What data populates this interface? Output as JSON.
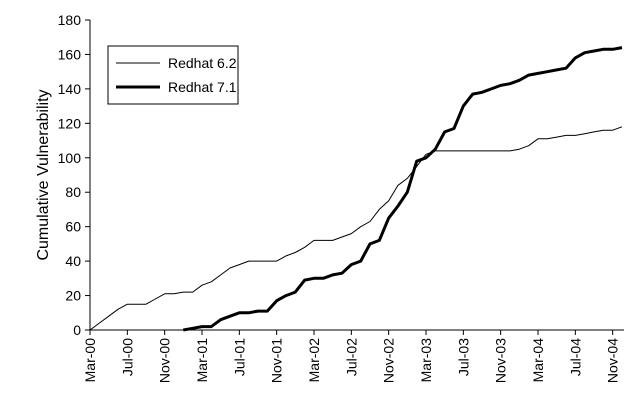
{
  "chart_data": {
    "type": "line",
    "y_label": "Cumulative Vulnerability",
    "categories": [
      "Mar-00",
      null,
      null,
      null,
      "Jul-00",
      null,
      null,
      null,
      "Nov-00",
      null,
      null,
      null,
      "Mar-01",
      null,
      null,
      null,
      "Jul-01",
      null,
      null,
      null,
      "Nov-01",
      null,
      null,
      null,
      "Mar-02",
      null,
      null,
      null,
      "Jul-02",
      null,
      null,
      null,
      "Nov-02",
      null,
      null,
      null,
      "Mar-03",
      null,
      null,
      null,
      "Jul-03",
      null,
      null,
      null,
      "Nov-03",
      null,
      null,
      null,
      "Mar-04",
      null,
      null,
      null,
      "Jul-04",
      null,
      null,
      null,
      "Nov-04",
      null
    ],
    "series": [
      {
        "name": "Redhat 6.2",
        "color": "#000000",
        "width": 1,
        "values": [
          0,
          4,
          8,
          12,
          15,
          15,
          15,
          18,
          21,
          21,
          22,
          22,
          26,
          28,
          32,
          36,
          38,
          40,
          40,
          40,
          40,
          43,
          45,
          48,
          52,
          52,
          52,
          54,
          56,
          60,
          63,
          70,
          75,
          84,
          88,
          95,
          102,
          104,
          104,
          104,
          104,
          104,
          104,
          104,
          104,
          104,
          105,
          107,
          111,
          111,
          112,
          113,
          113,
          114,
          115,
          116,
          116,
          118
        ]
      },
      {
        "name": "Redhat 7.1",
        "color": "#000000",
        "width": 3,
        "values": [
          null,
          null,
          null,
          null,
          null,
          null,
          null,
          null,
          null,
          null,
          0,
          1,
          2,
          2,
          6,
          8,
          10,
          10,
          11,
          11,
          17,
          20,
          22,
          29,
          30,
          30,
          32,
          33,
          38,
          40,
          50,
          52,
          65,
          72,
          80,
          98,
          100,
          105,
          115,
          117,
          130,
          137,
          138,
          140,
          142,
          143,
          145,
          148,
          149,
          150,
          151,
          152,
          158,
          161,
          162,
          163,
          163,
          164
        ]
      }
    ],
    "ylim": [
      0,
      180
    ],
    "yticks": [
      0,
      20,
      40,
      60,
      80,
      100,
      120,
      140,
      160,
      180
    ]
  }
}
